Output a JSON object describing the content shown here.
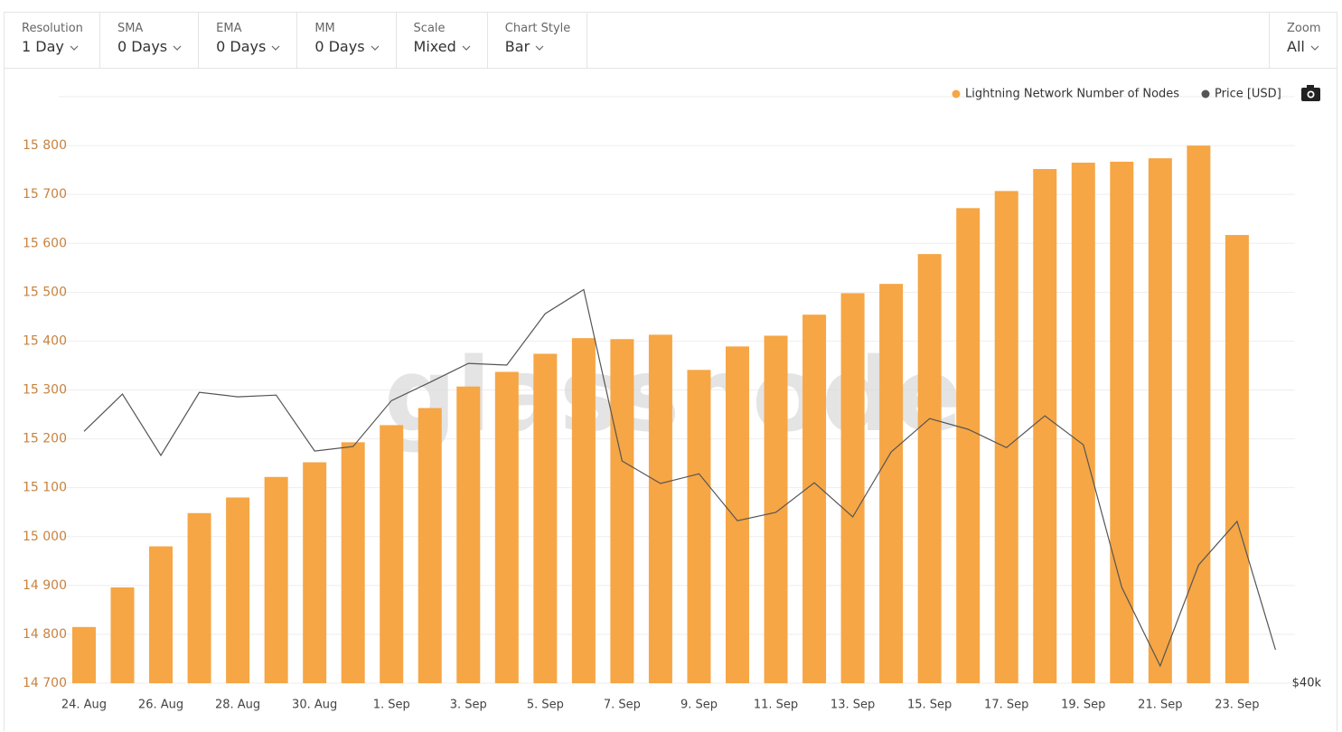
{
  "toolbar": {
    "controls": [
      {
        "label": "Resolution",
        "value": "1 Day"
      },
      {
        "label": "SMA",
        "value": "0 Days"
      },
      {
        "label": "EMA",
        "value": "0 Days"
      },
      {
        "label": "MM",
        "value": "0 Days"
      },
      {
        "label": "Scale",
        "value": "Mixed"
      },
      {
        "label": "Chart Style",
        "value": "Bar"
      }
    ],
    "zoom": {
      "label": "Zoom",
      "value": "All"
    }
  },
  "chart_data": {
    "type": "bar",
    "watermark": "glassnode",
    "legend": "top-right",
    "grid": true,
    "categories": [
      "24. Aug",
      null,
      "26. Aug",
      null,
      "28. Aug",
      null,
      "30. Aug",
      null,
      "1. Sep",
      null,
      "3. Sep",
      null,
      "5. Sep",
      null,
      "7. Sep",
      null,
      "9. Sep",
      null,
      "11. Sep",
      null,
      "13. Sep",
      null,
      "15. Sep",
      null,
      "17. Sep",
      null,
      "19. Sep",
      null,
      "21. Sep",
      null,
      "23. Sep",
      null
    ],
    "series": [
      {
        "name": "Lightning Network Number of Nodes",
        "type": "bar",
        "color": "#f6a645",
        "values": [
          14815,
          14896,
          14980,
          15048,
          15080,
          15122,
          15152,
          15193,
          15228,
          15263,
          15307,
          15337,
          15374,
          15406,
          15404,
          15413,
          15341,
          15389,
          15411,
          15454,
          15498,
          15517,
          15578,
          15672,
          15707,
          15752,
          15765,
          15767,
          15774,
          15800,
          15617,
          null
        ]
      },
      {
        "name": "Price [USD]",
        "type": "line",
        "axis": "y2",
        "color": "#555555",
        "values": [
          47300,
          48380,
          46600,
          48430,
          48300,
          48350,
          46730,
          46860,
          48190,
          48720,
          49270,
          49220,
          50710,
          51410,
          46440,
          45790,
          46070,
          44710,
          44950,
          45810,
          44820,
          46700,
          47670,
          47360,
          46830,
          47750,
          46910,
          42780,
          40500,
          43430,
          44690,
          40970
        ]
      }
    ],
    "ylim": [
      14700,
      15900
    ],
    "yticks": [
      {
        "value": 14700,
        "label": "14 700"
      },
      {
        "value": 14800,
        "label": "14 800"
      },
      {
        "value": 14900,
        "label": "14 900"
      },
      {
        "value": 15000,
        "label": "15 000"
      },
      {
        "value": 15100,
        "label": "15 100"
      },
      {
        "value": 15200,
        "label": "15 200"
      },
      {
        "value": 15300,
        "label": "15 300"
      },
      {
        "value": 15400,
        "label": "15 400"
      },
      {
        "value": 15500,
        "label": "15 500"
      },
      {
        "value": 15600,
        "label": "15 600"
      },
      {
        "value": 15700,
        "label": "15 700"
      },
      {
        "value": 15800,
        "label": "15 800"
      }
    ],
    "y2lim": [
      40000,
      57000
    ],
    "y2ticks": [
      {
        "value": 40000,
        "label": "$40k"
      }
    ]
  }
}
